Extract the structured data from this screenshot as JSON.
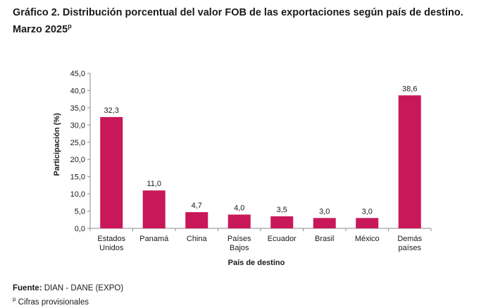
{
  "title": {
    "line1": "Gráfico 2. Distribución porcentual del valor FOB de las exportaciones según país de destino.",
    "line2": "Marzo 2025",
    "superscript": "p"
  },
  "chart_data": {
    "type": "bar",
    "categories": [
      [
        "Estados",
        "Unidos"
      ],
      [
        "Panamá"
      ],
      [
        "China"
      ],
      [
        "Países",
        "Bajos"
      ],
      [
        "Ecuador"
      ],
      [
        "Brasil"
      ],
      [
        "México"
      ],
      [
        "Demás",
        "países"
      ]
    ],
    "values": [
      32.3,
      11.0,
      4.7,
      4.0,
      3.5,
      3.0,
      3.0,
      38.6
    ],
    "value_labels": [
      "32,3",
      "11,0",
      "4,7",
      "4,0",
      "3,5",
      "3,0",
      "3,0",
      "38,6"
    ],
    "yticks": [
      "0,0",
      "5,0",
      "10,0",
      "15,0",
      "20,0",
      "25,0",
      "30,0",
      "35,0",
      "40,0",
      "45,0"
    ],
    "ylim": [
      0,
      45
    ],
    "xlabel": "País de destino",
    "ylabel": "Participación (%)",
    "bar_color": "#c8185a",
    "grid": false
  },
  "footer": {
    "source_label": "Fuente:",
    "source_text": " DIAN - DANE (EXPO)",
    "note_superscript": "p",
    "note_text": " Cifras provisionales"
  }
}
